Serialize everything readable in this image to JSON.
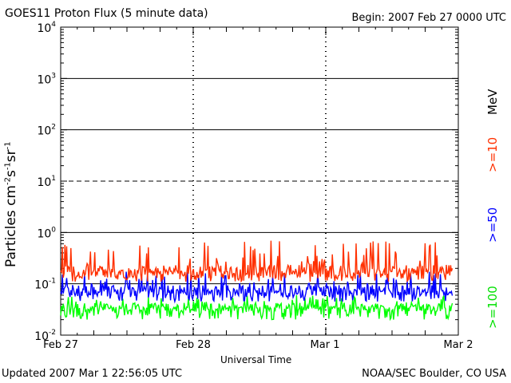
{
  "header": {
    "title": "GOES11 Proton Flux (5 minute data)",
    "begin": "Begin: 2007 Feb 27 0000 UTC"
  },
  "footer": {
    "updated": "Updated 2007 Mar  1 22:56:05 UTC",
    "credit": "NOAA/SEC Boulder, CO USA"
  },
  "chart_data": {
    "type": "line",
    "title": "GOES11 Proton Flux (5 minute data)",
    "xlabel": "Universal Time",
    "ylabel_parts": [
      "Particles cm",
      "-2",
      "s",
      "-1",
      "sr",
      "-1"
    ],
    "y_scale": "log",
    "ylim": [
      0.01,
      10000
    ],
    "y_ticks": [
      {
        "base": "10",
        "exp": "4"
      },
      {
        "base": "10",
        "exp": "3"
      },
      {
        "base": "10",
        "exp": "2"
      },
      {
        "base": "10",
        "exp": "1"
      },
      {
        "base": "10",
        "exp": "0"
      },
      {
        "base": "10",
        "exp": "-1"
      },
      {
        "base": "10",
        "exp": "-2"
      }
    ],
    "x_ticks": [
      "Feb 27",
      "Feb 28",
      "Mar 1",
      "Mar 2"
    ],
    "xlim": [
      "2007-02-27 00:00",
      "2007-03-02 00:00"
    ],
    "threshold_lines": [
      10,
      1000
    ],
    "legend_unit": "MeV",
    "series": [
      {
        "name": ">=10",
        "color": "#ff3000",
        "baseline": 0.17,
        "range": [
          0.11,
          0.7
        ]
      },
      {
        "name": ">=50",
        "color": "#0000ff",
        "baseline": 0.075,
        "range": [
          0.045,
          0.18
        ]
      },
      {
        "name": ">=100",
        "color": "#00ff00",
        "baseline": 0.035,
        "range": [
          0.02,
          0.06
        ]
      }
    ],
    "data_end": "2007-03-01 22:55"
  }
}
